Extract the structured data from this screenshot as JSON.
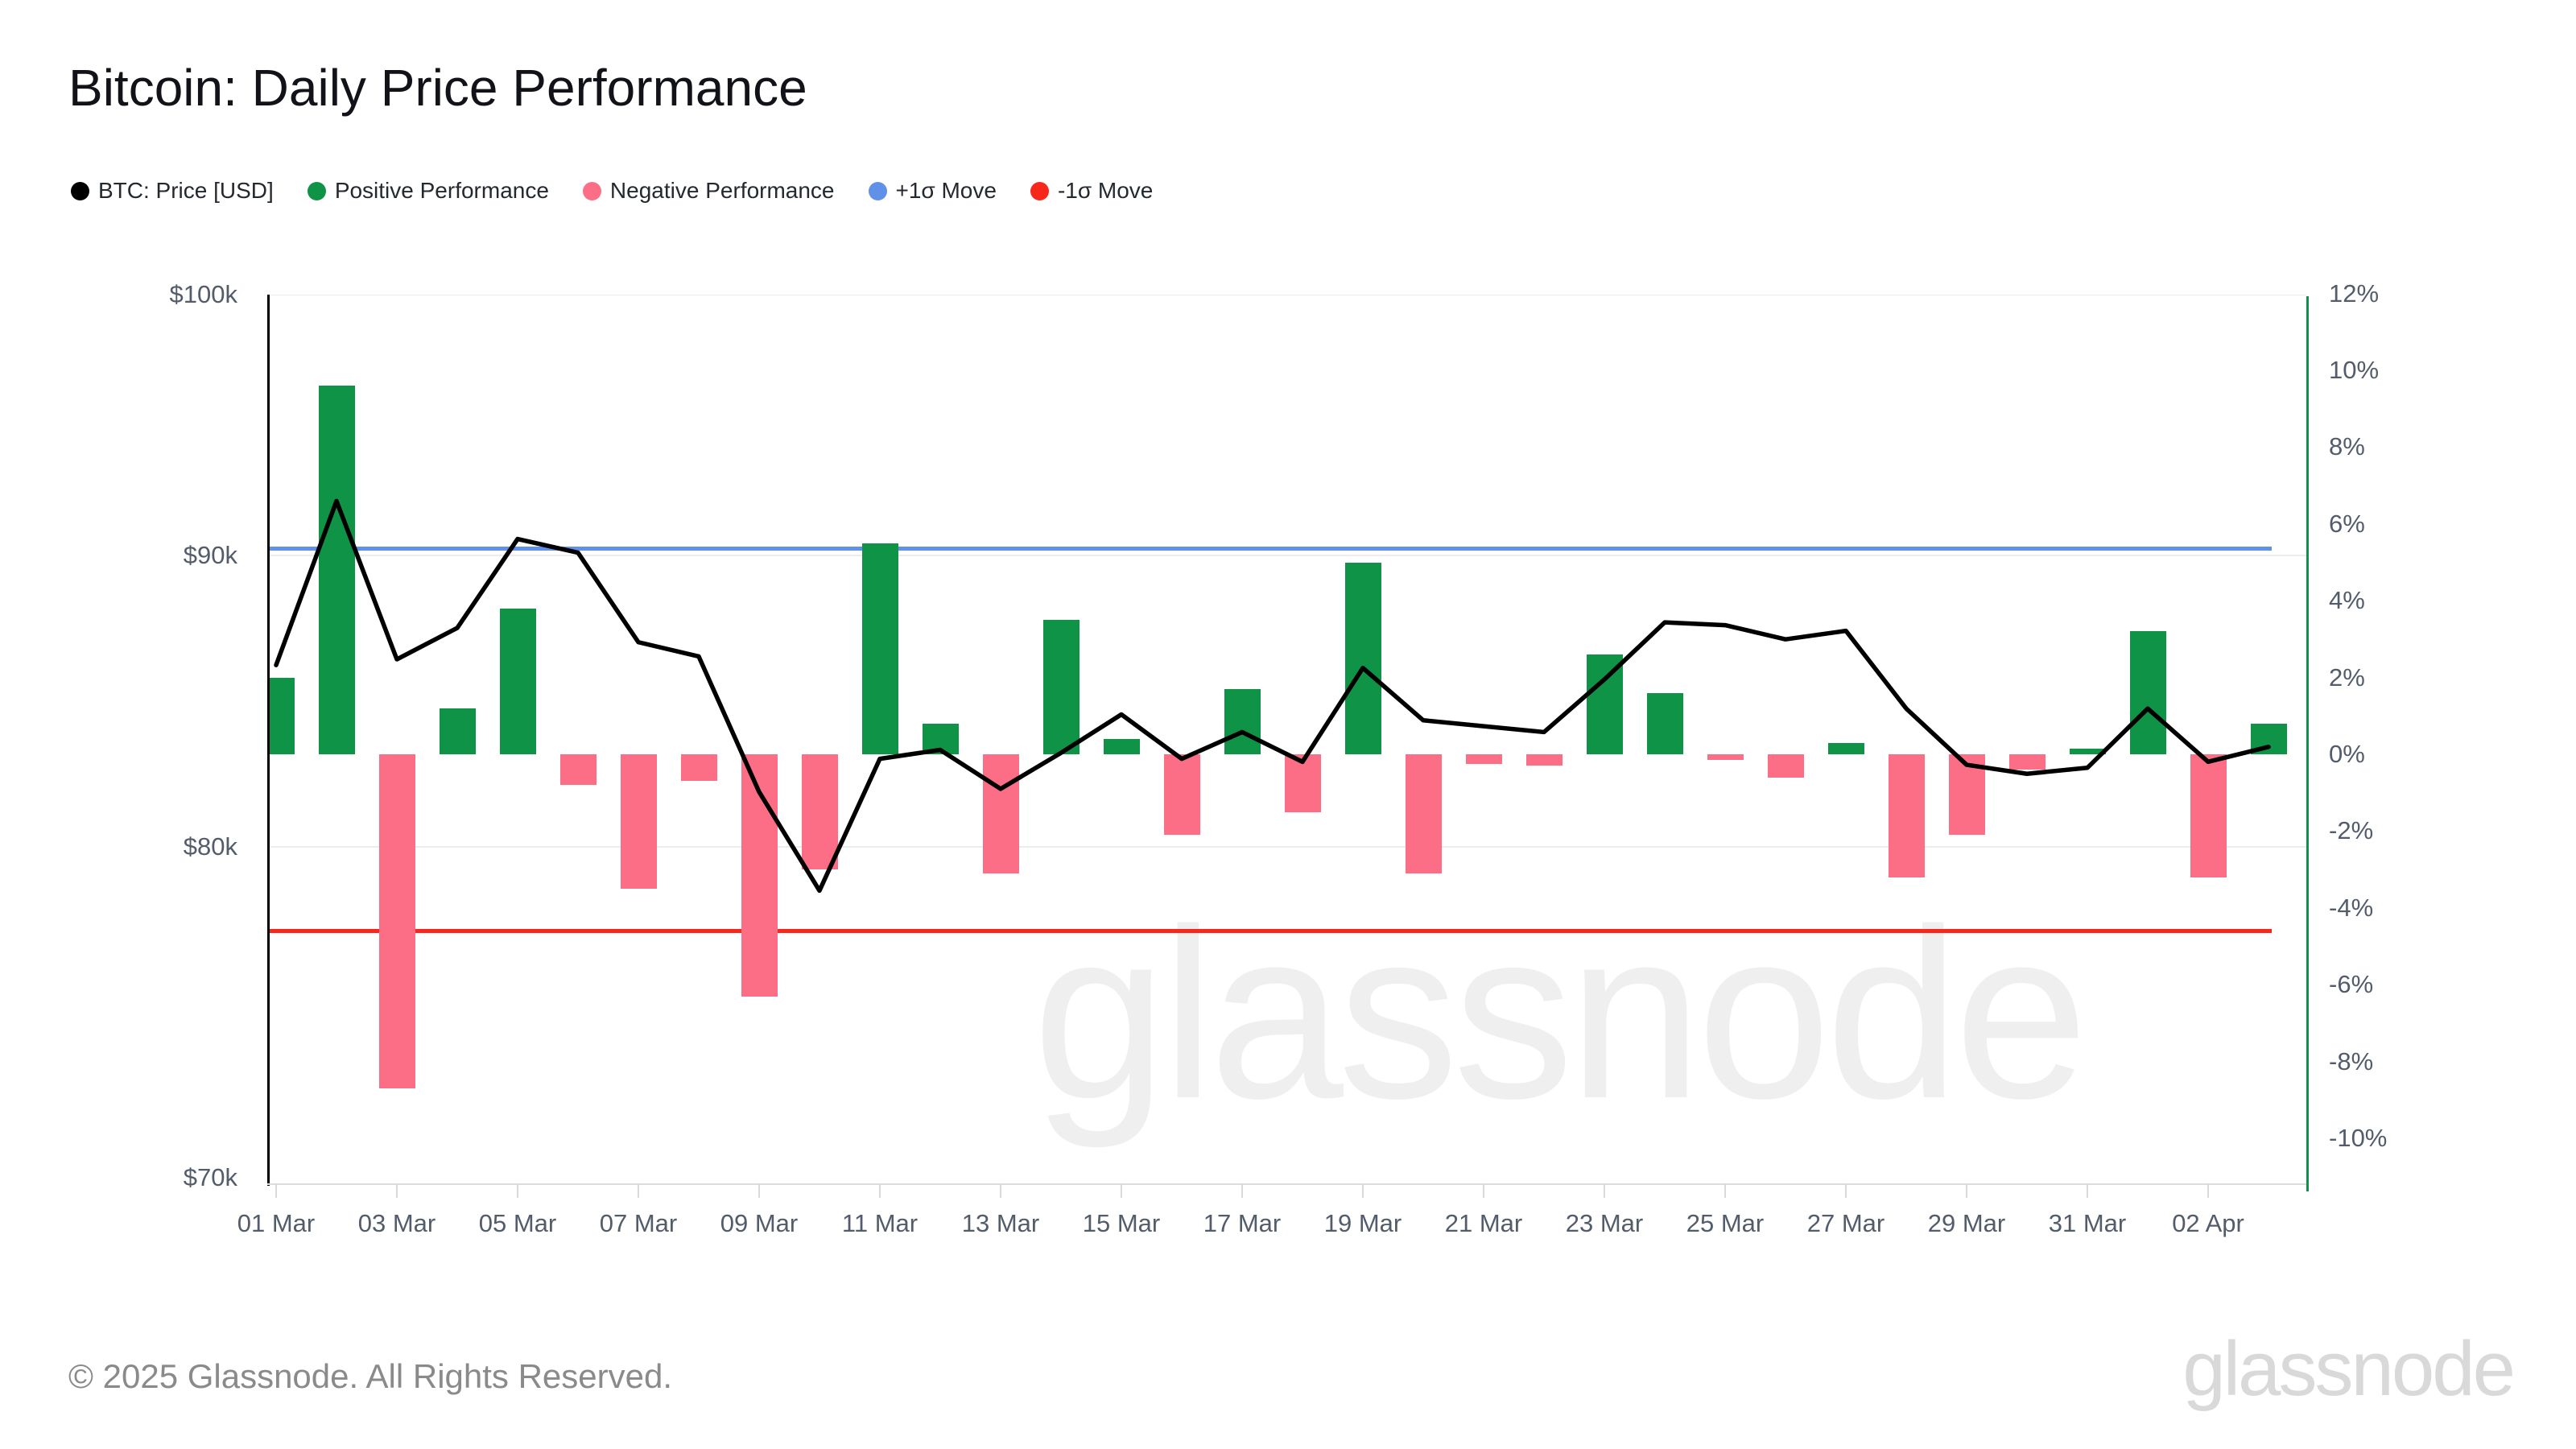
{
  "title": "Bitcoin: Daily Price Performance",
  "legend": [
    {
      "label": "BTC: Price [USD]",
      "color": "#000000",
      "icon": "dot"
    },
    {
      "label": "Positive Performance",
      "color": "#0f9347",
      "icon": "dot"
    },
    {
      "label": "Negative Performance",
      "color": "#fb6e85",
      "icon": "dot"
    },
    {
      "label": "+1σ Move",
      "color": "#6090e8",
      "icon": "dot"
    },
    {
      "label": "-1σ Move",
      "color": "#f8271c",
      "icon": "dot"
    }
  ],
  "watermark": "glassnode",
  "footer": {
    "copyright": "© 2025 Glassnode. All Rights Reserved.",
    "brand": "glassnode"
  },
  "chart_data": {
    "type": "bar+line",
    "title": "Bitcoin: Daily Price Performance",
    "dates": [
      "01 Mar",
      "02 Mar",
      "03 Mar",
      "04 Mar",
      "05 Mar",
      "06 Mar",
      "07 Mar",
      "08 Mar",
      "09 Mar",
      "10 Mar",
      "11 Mar",
      "12 Mar",
      "13 Mar",
      "14 Mar",
      "15 Mar",
      "16 Mar",
      "17 Mar",
      "18 Mar",
      "19 Mar",
      "20 Mar",
      "21 Mar",
      "22 Mar",
      "23 Mar",
      "24 Mar",
      "25 Mar",
      "26 Mar",
      "27 Mar",
      "28 Mar",
      "29 Mar",
      "30 Mar",
      "31 Mar",
      "01 Apr",
      "02 Apr",
      "03 Apr"
    ],
    "series": [
      {
        "name": "BTC: Price [USD]",
        "type": "line",
        "axis": "left",
        "color": "#000000",
        "values_usd_thousands": [
          86.1,
          92.0,
          86.3,
          87.4,
          90.6,
          90.1,
          86.9,
          86.4,
          81.8,
          78.6,
          82.9,
          83.2,
          81.9,
          83.1,
          84.4,
          82.9,
          83.8,
          82.8,
          86.0,
          84.2,
          84.0,
          83.8,
          85.6,
          87.6,
          87.5,
          87.0,
          87.3,
          84.6,
          82.7,
          82.4,
          82.6,
          84.6,
          82.8,
          83.3
        ]
      },
      {
        "name": "Daily Performance",
        "type": "bar",
        "axis": "right",
        "positive_name": "Positive Performance",
        "negative_name": "Negative Performance",
        "positive_color": "#0f9347",
        "negative_color": "#fb6e85",
        "values_pct": [
          2.0,
          9.6,
          -8.7,
          1.2,
          3.8,
          -0.8,
          -3.5,
          -0.7,
          -6.3,
          -3.0,
          5.5,
          0.8,
          -3.1,
          3.5,
          0.4,
          -2.1,
          1.7,
          -1.5,
          5.0,
          -3.1,
          -0.25,
          -0.3,
          2.6,
          1.6,
          -0.15,
          -0.6,
          0.3,
          -3.2,
          -2.1,
          -0.4,
          0.15,
          3.2,
          -3.2,
          0.8
        ]
      },
      {
        "name": "+1σ Move",
        "type": "hline",
        "axis": "right",
        "value_pct": 5.35,
        "color": "#6090e8"
      },
      {
        "name": "-1σ Move",
        "type": "hline",
        "axis": "right",
        "value_pct": -4.6,
        "color": "#f8271c"
      }
    ],
    "left_axis": {
      "scale": "log",
      "tick_labels": [
        "$100k",
        "$90k",
        "$80k",
        "$70k"
      ],
      "tick_values_thousands": [
        100,
        90,
        80,
        70
      ],
      "gridlines_at_thousands": [
        100,
        90,
        80
      ]
    },
    "right_axis": {
      "scale": "linear",
      "unit": "%",
      "tick_labels": [
        "12%",
        "10%",
        "8%",
        "6%",
        "4%",
        "2%",
        "0%",
        "-2%",
        "-4%",
        "-6%",
        "-8%",
        "-10%"
      ],
      "tick_values": [
        12,
        10,
        8,
        6,
        4,
        2,
        0,
        -2,
        -4,
        -6,
        -8,
        -10
      ],
      "spine_color": "#0f9347"
    },
    "x_axis": {
      "tick_step": 2,
      "tick_labels": [
        "01 Mar",
        "03 Mar",
        "05 Mar",
        "07 Mar",
        "09 Mar",
        "11 Mar",
        "13 Mar",
        "15 Mar",
        "17 Mar",
        "19 Mar",
        "21 Mar",
        "23 Mar",
        "25 Mar",
        "27 Mar",
        "29 Mar",
        "31 Mar",
        "02 Apr"
      ]
    },
    "legend_position": "top-left",
    "grid": "horizontal-only"
  }
}
